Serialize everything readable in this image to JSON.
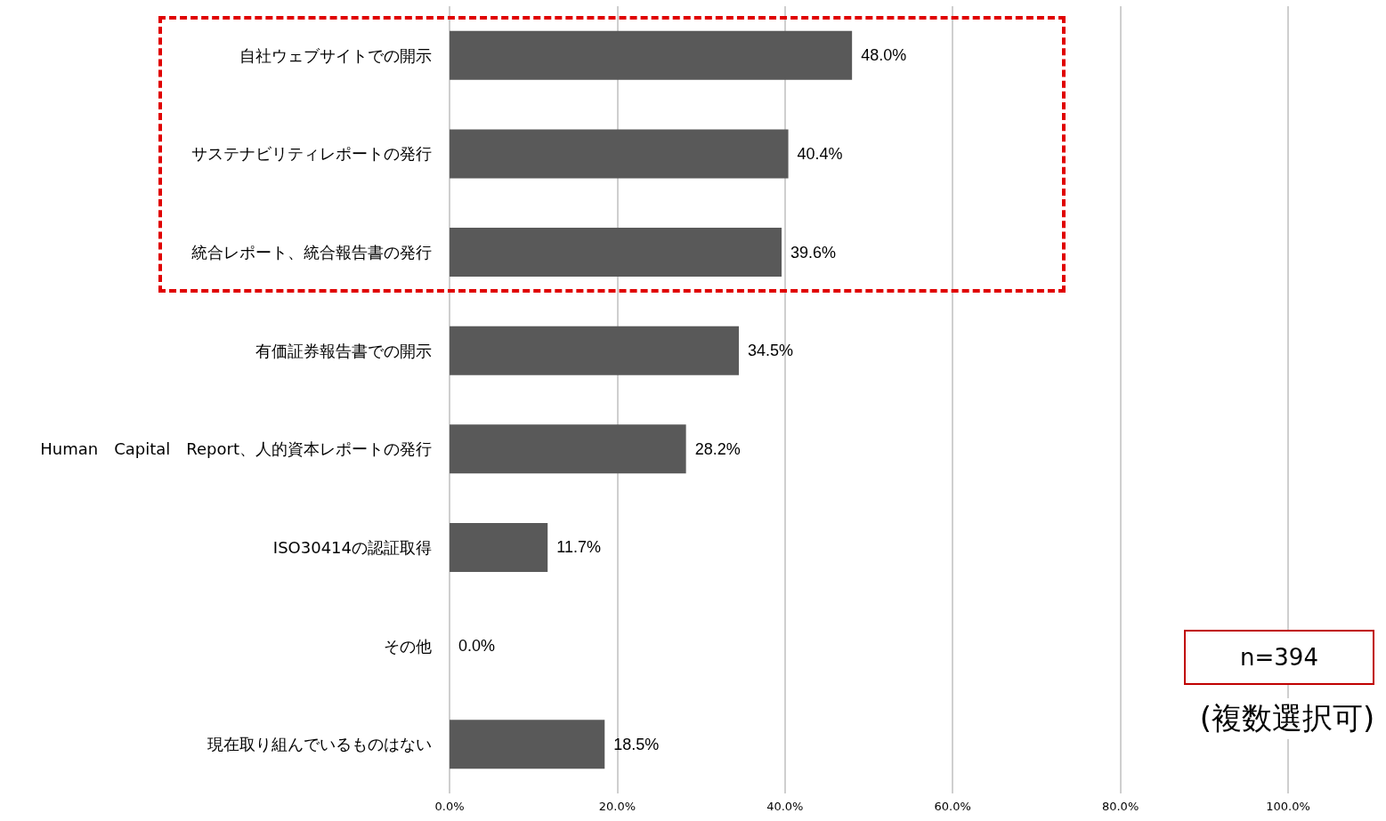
{
  "chart_data": {
    "type": "bar",
    "orientation": "horizontal",
    "categories": [
      "自社ウェブサイトでの開示",
      "サステナビリティレポートの発行",
      "統合レポート、統合報告書の発行",
      "有価証券報告書での開示",
      "Human　Capital　Report、人的資本レポートの発行",
      "ISO30414の認証取得",
      "その他",
      "現在取り組んでいるものはない"
    ],
    "values": [
      48.0,
      40.4,
      39.6,
      34.5,
      28.2,
      11.7,
      0.0,
      18.5
    ],
    "value_labels": [
      "48.0%",
      "40.4%",
      "39.6%",
      "34.5%",
      "28.2%",
      "11.7%",
      "0.0%",
      "18.5%"
    ],
    "color": "#595959",
    "xlim": [
      0,
      100
    ],
    "xticks": [
      {
        "value": 0,
        "label": "0.0%"
      },
      {
        "value": 20,
        "label": "20.0%"
      },
      {
        "value": 40,
        "label": "40.0%"
      },
      {
        "value": 60,
        "label": "60.0%"
      },
      {
        "value": 80,
        "label": "80.0%"
      },
      {
        "value": 100,
        "label": "100.0%"
      }
    ],
    "grid": "x",
    "annotations": [
      "n=394",
      "(複数選択可)"
    ]
  }
}
